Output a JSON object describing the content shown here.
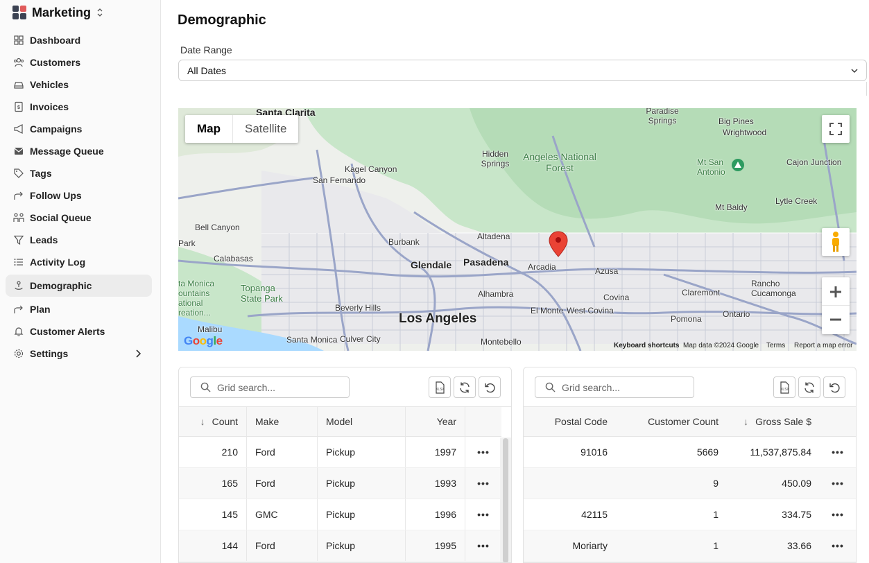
{
  "app": {
    "title": "Marketing",
    "logo_colors": [
      "#3b4252",
      "#e05a5a",
      "#3b4252",
      "#3b4252"
    ]
  },
  "sidebar": {
    "items": [
      {
        "label": "Dashboard",
        "icon": "dashboard-icon"
      },
      {
        "label": "Customers",
        "icon": "customers-icon"
      },
      {
        "label": "Vehicles",
        "icon": "vehicle-icon"
      },
      {
        "label": "Invoices",
        "icon": "invoice-icon"
      },
      {
        "label": "Campaigns",
        "icon": "megaphone-icon"
      },
      {
        "label": "Message Queue",
        "icon": "mail-icon"
      },
      {
        "label": "Tags",
        "icon": "tag-icon"
      },
      {
        "label": "Follow Ups",
        "icon": "forward-icon"
      },
      {
        "label": "Social Queue",
        "icon": "people-icon"
      },
      {
        "label": "Leads",
        "icon": "filter-icon"
      },
      {
        "label": "Activity Log",
        "icon": "list-icon"
      },
      {
        "label": "Demographic",
        "icon": "person-pin-icon",
        "active": true
      },
      {
        "label": "Plan",
        "icon": "forward-icon"
      },
      {
        "label": "Customer Alerts",
        "icon": "bell-icon"
      },
      {
        "label": "Settings",
        "icon": "gear-icon",
        "has_arrow": true
      }
    ]
  },
  "page": {
    "title": "Demographic",
    "date_range": {
      "label": "Date Range",
      "value": "All Dates"
    }
  },
  "map": {
    "type_buttons": [
      "Map",
      "Satellite"
    ],
    "labels": {
      "santa_clarita": "Santa Clarita",
      "paradise_springs": "Paradise Springs",
      "big_pines": "Big Pines",
      "wrightwood": "Wrightwood",
      "hidden_springs": "Hidden Springs",
      "angeles": "Angeles National Forest",
      "kagel": "Kagel Canyon",
      "san_fernando": "San Fernando",
      "mt_san_antonio": "Mt San Antonio",
      "cajon": "Cajon Junction",
      "bell_canyon": "Bell Canyon",
      "mt_baldy": "Mt Baldy",
      "lytle": "Lytle Creek",
      "park": "Park",
      "burbank": "Burbank",
      "altadena": "Altadena",
      "calabasas": "Calabasas",
      "glendale": "Glendale",
      "pasadena": "Pasadena",
      "arcadia": "Arcadia",
      "azusa": "Azusa",
      "santa_monica_mtns": "ta Monica\nountains\national\nreation...",
      "topanga": "Topanga\nState Park",
      "rancho": "Rancho\nCucamonga",
      "claremont": "Claremont",
      "alhambra": "Alhambra",
      "covina": "Covina",
      "beverly_hills": "Beverly Hills",
      "el_monte": "El Monte",
      "west_covina": "West Covina",
      "pomona": "Pomona",
      "ontario": "Ontario",
      "los_angeles": "Los Angeles",
      "malibu": "Malibu",
      "santa_monica": "Santa Monica",
      "culver": "Culver City",
      "montebello": "Montebello"
    },
    "footer": [
      "Keyboard shortcuts",
      "Map data ©2024 Google",
      "Terms",
      "Report a map error"
    ],
    "google": "Google"
  },
  "grid_left": {
    "search_placeholder": "Grid search...",
    "columns": [
      "Count",
      "Make",
      "Model",
      "Year"
    ],
    "rows": [
      {
        "count": "210",
        "make": "Ford",
        "model": "Pickup",
        "year": "1997"
      },
      {
        "count": "165",
        "make": "Ford",
        "model": "Pickup",
        "year": "1993"
      },
      {
        "count": "145",
        "make": "GMC",
        "model": "Pickup",
        "year": "1996"
      },
      {
        "count": "144",
        "make": "Ford",
        "model": "Pickup",
        "year": "1995"
      }
    ]
  },
  "grid_right": {
    "search_placeholder": "Grid search...",
    "columns": [
      "Postal Code",
      "Customer Count",
      "Gross Sale $"
    ],
    "rows": [
      {
        "postal": "91016",
        "count": "5669",
        "gross": "11,537,875.84"
      },
      {
        "postal": "",
        "count": "9",
        "gross": "450.09"
      },
      {
        "postal": "42115",
        "count": "1",
        "gross": "334.75"
      },
      {
        "postal": "Moriarty",
        "count": "1",
        "gross": "33.66"
      }
    ]
  },
  "row_menu": "•••"
}
